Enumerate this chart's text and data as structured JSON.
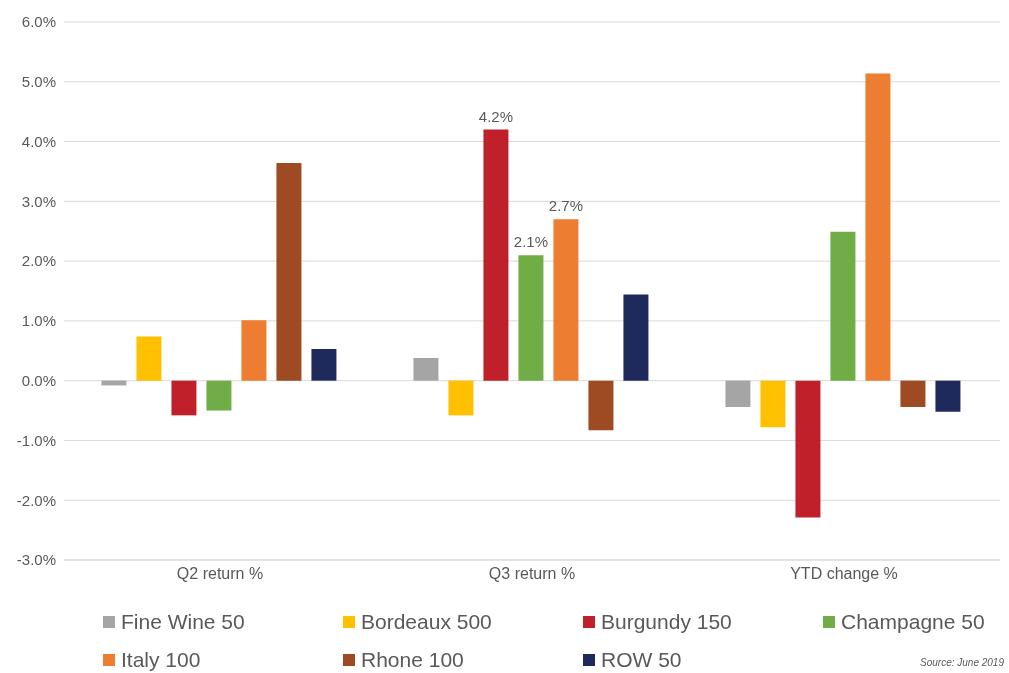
{
  "chart_data": {
    "type": "bar",
    "categories": [
      "Q2 return %",
      "Q3 return %",
      "YTD change %"
    ],
    "series": [
      {
        "name": "Fine Wine 50",
        "color": "#a5a5a5",
        "values": [
          -0.08,
          0.38,
          -0.44
        ]
      },
      {
        "name": "Bordeaux 500",
        "color": "#ffc000",
        "values": [
          0.74,
          -0.58,
          -0.78
        ]
      },
      {
        "name": "Burgundy 150",
        "color": "#c0202a",
        "values": [
          -0.58,
          4.2,
          -2.29
        ],
        "value_labels": [
          null,
          "4.2%",
          null
        ]
      },
      {
        "name": "Champagne 50",
        "color": "#70ad47",
        "values": [
          -0.5,
          2.1,
          2.49
        ],
        "value_labels": [
          null,
          "2.1%",
          null
        ]
      },
      {
        "name": "Italy 100",
        "color": "#ed7d31",
        "values": [
          1.01,
          2.7,
          5.14
        ],
        "value_labels": [
          null,
          "2.7%",
          null
        ]
      },
      {
        "name": "Rhone 100",
        "color": "#9e4a22",
        "values": [
          3.64,
          -0.83,
          -0.44
        ]
      },
      {
        "name": "ROW 50",
        "color": "#1f2a5c",
        "values": [
          0.53,
          1.44,
          -0.52
        ]
      }
    ],
    "ylim": [
      -3,
      6
    ],
    "yticks": [
      {
        "value": -3,
        "label": "-3.0%"
      },
      {
        "value": -2,
        "label": "-2.0%"
      },
      {
        "value": -1,
        "label": "-1.0%"
      },
      {
        "value": 0,
        "label": "0.0%"
      },
      {
        "value": 1,
        "label": "1.0%"
      },
      {
        "value": 2,
        "label": "2.0%"
      },
      {
        "value": 3,
        "label": "3.0%"
      },
      {
        "value": 4,
        "label": "4.0%"
      },
      {
        "value": 5,
        "label": "5.0%"
      },
      {
        "value": 6,
        "label": "6.0%"
      }
    ],
    "grid": "y",
    "legend": "bottom",
    "annotations": [
      "Source: June 2019"
    ]
  }
}
